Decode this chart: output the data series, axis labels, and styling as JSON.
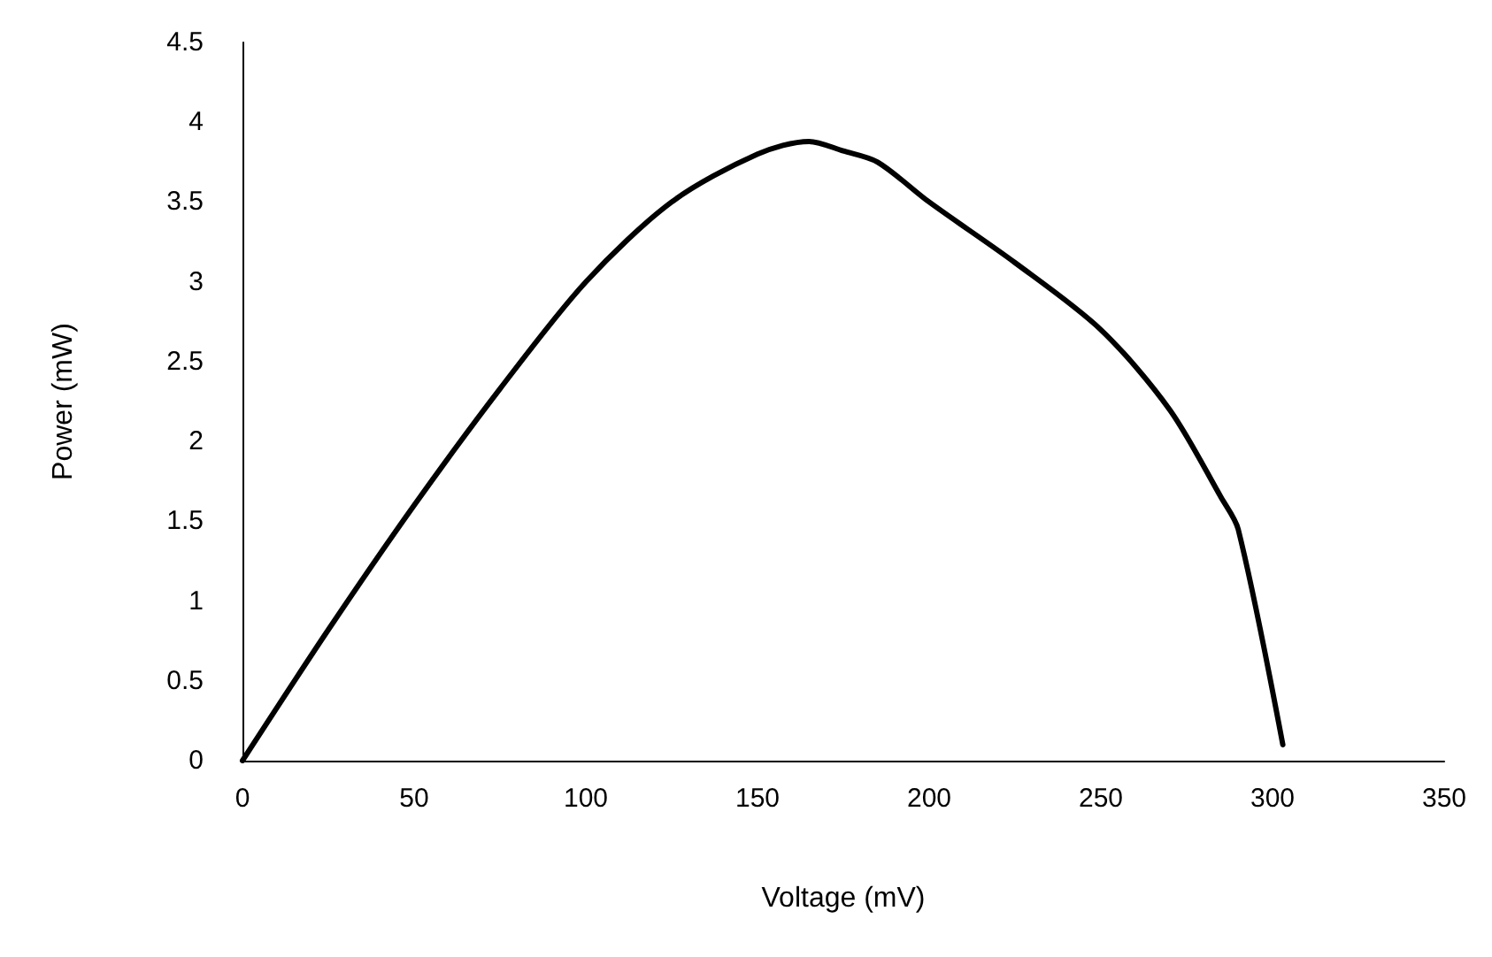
{
  "chart_data": {
    "type": "line",
    "xlabel": "Voltage (mV)",
    "ylabel": "Power (mW)",
    "x": [
      0,
      25,
      50,
      75,
      100,
      125,
      150,
      165,
      175,
      185,
      200,
      225,
      250,
      270,
      285,
      290,
      303
    ],
    "series": [
      {
        "color": "#000000",
        "values": [
          0,
          0.82,
          1.6,
          2.33,
          3.0,
          3.5,
          3.8,
          3.88,
          3.82,
          3.75,
          3.5,
          3.12,
          2.7,
          2.2,
          1.65,
          1.45,
          0.1
        ]
      }
    ],
    "xlim": [
      0,
      350
    ],
    "xticks": [
      0,
      50,
      100,
      150,
      200,
      250,
      300,
      350
    ],
    "ylim": [
      0,
      4.5
    ],
    "yticks": [
      0,
      0.5,
      1,
      1.5,
      2,
      2.5,
      3,
      3.5,
      4,
      4.5
    ],
    "grid": false,
    "marker": "none",
    "line_style": "solid"
  }
}
